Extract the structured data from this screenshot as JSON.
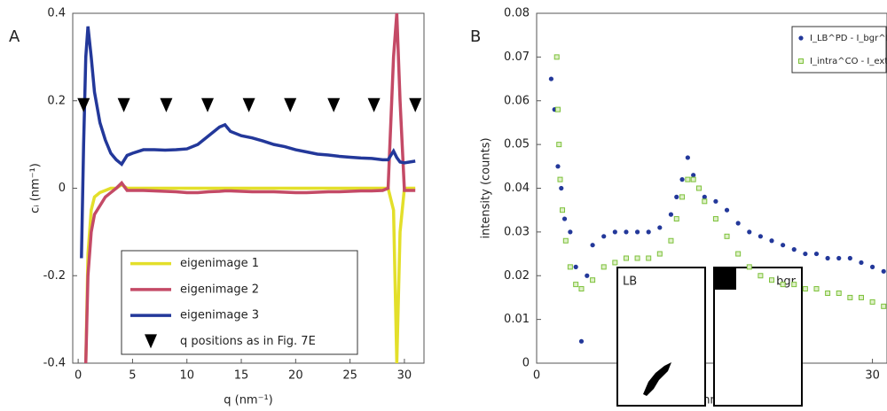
{
  "chart_data": [
    {
      "type": "line",
      "panel": "A",
      "ylabel": "cᵢ (nm⁻¹)",
      "xlabel": "q (nm⁻¹)",
      "xlim": [
        -0.5,
        31.8
      ],
      "ylim": [
        -0.4,
        0.4
      ],
      "xticks": [
        0,
        5,
        10,
        15,
        20,
        25,
        30
      ],
      "yticks": [
        -0.4,
        -0.2,
        0,
        0.2,
        0.4
      ],
      "x": [
        0.3,
        0.5,
        0.7,
        0.9,
        1.2,
        1.5,
        2,
        2.5,
        3,
        3.5,
        4,
        4.5,
        5,
        6,
        7,
        8,
        9,
        10,
        11,
        12,
        13,
        13.5,
        14,
        15,
        16,
        17,
        18,
        19,
        20,
        21,
        22,
        23,
        24,
        25,
        26,
        27,
        28,
        28.5,
        29,
        29.3,
        29.6,
        30,
        30.5,
        31
      ],
      "series": [
        {
          "name": "eigenimage 1",
          "color": "#e3df2a",
          "marker": "line",
          "values": [
            null,
            null,
            -0.4,
            -0.15,
            -0.05,
            -0.02,
            -0.01,
            -0.005,
            0,
            0,
            0.008,
            0,
            0,
            0,
            0,
            0,
            0,
            0,
            0,
            0,
            0,
            0,
            0,
            0,
            0,
            0,
            0,
            0,
            0,
            0,
            0,
            0,
            0,
            0,
            0,
            0,
            0,
            0,
            -0.05,
            -0.4,
            -0.1,
            0,
            0,
            0
          ]
        },
        {
          "name": "eigenimage 2",
          "color": "#c44a66",
          "marker": "line",
          "values": [
            null,
            null,
            -0.4,
            -0.2,
            -0.1,
            -0.06,
            -0.04,
            -0.02,
            -0.01,
            0,
            0.012,
            -0.005,
            -0.005,
            -0.005,
            -0.006,
            -0.007,
            -0.008,
            -0.01,
            -0.01,
            -0.008,
            -0.007,
            -0.006,
            -0.006,
            -0.007,
            -0.008,
            -0.008,
            -0.008,
            -0.009,
            -0.01,
            -0.01,
            -0.009,
            -0.008,
            -0.008,
            -0.007,
            -0.006,
            -0.006,
            -0.005,
            0,
            0.3,
            0.4,
            0.2,
            -0.005,
            -0.005,
            -0.005
          ]
        },
        {
          "name": "eigenimage 3",
          "color": "#23389a",
          "marker": "line",
          "values": [
            -0.16,
            0.1,
            0.3,
            0.37,
            0.3,
            0.22,
            0.15,
            0.11,
            0.08,
            0.065,
            0.055,
            0.075,
            0.08,
            0.088,
            0.088,
            0.087,
            0.088,
            0.09,
            0.1,
            0.12,
            0.14,
            0.145,
            0.13,
            0.12,
            0.115,
            0.108,
            0.1,
            0.095,
            0.088,
            0.083,
            0.078,
            0.076,
            0.073,
            0.071,
            0.069,
            0.068,
            0.065,
            0.065,
            0.085,
            0.07,
            0.06,
            0.058,
            0.06,
            0.062
          ]
        },
        {
          "name": "q positions as in Fig. 7E",
          "color": "#000000",
          "marker": "triangle",
          "x": [
            0.5,
            4.2,
            8.1,
            11.9,
            15.7,
            19.5,
            23.5,
            27.2,
            31
          ],
          "values": [
            0.19,
            0.19,
            0.19,
            0.19,
            0.19,
            0.19,
            0.19,
            0.19,
            0.19
          ]
        }
      ]
    },
    {
      "type": "scatter",
      "panel": "B",
      "ylabel": "intensity (counts)",
      "xlabel": "q (nm⁻¹)",
      "xlim": [
        0,
        31.3
      ],
      "ylim": [
        0,
        0.08
      ],
      "xticks": [
        0,
        10,
        20,
        30
      ],
      "yticks": [
        0,
        0.01,
        0.02,
        0.03,
        0.04,
        0.05,
        0.06,
        0.07,
        0.08
      ],
      "insets": [
        "LB",
        "bgr"
      ],
      "series": [
        {
          "name": "I_LB^PD - I_bgr^PD",
          "color": "#23389a",
          "marker": "circle",
          "x": [
            1.3,
            1.6,
            1.9,
            2.2,
            2.5,
            3,
            3.5,
            4,
            4.5,
            5,
            6,
            7,
            8,
            9,
            10,
            11,
            12,
            12.5,
            13,
            13.5,
            14,
            14.5,
            15,
            16,
            17,
            18,
            19,
            20,
            21,
            22,
            23,
            24,
            25,
            26,
            27,
            28,
            29,
            30,
            31
          ],
          "values": [
            0.065,
            0.058,
            0.045,
            0.04,
            0.033,
            0.03,
            0.022,
            0.005,
            0.02,
            0.027,
            0.029,
            0.03,
            0.03,
            0.03,
            0.03,
            0.031,
            0.034,
            0.038,
            0.042,
            0.047,
            0.043,
            0.04,
            0.038,
            0.037,
            0.035,
            0.032,
            0.03,
            0.029,
            0.028,
            0.027,
            0.026,
            0.025,
            0.025,
            0.024,
            0.024,
            0.024,
            0.023,
            0.022,
            0.021
          ]
        },
        {
          "name": "I_intra^CO - I_extra^CO",
          "color": "#7cc13a",
          "marker": "square",
          "x": [
            1.8,
            1.9,
            2,
            2.1,
            2.3,
            2.6,
            3,
            3.5,
            4,
            5,
            6,
            7,
            8,
            9,
            10,
            11,
            12,
            12.5,
            13,
            13.5,
            14,
            14.5,
            15,
            16,
            17,
            18,
            19,
            20,
            21,
            22,
            23,
            24,
            25,
            26,
            27,
            28,
            29,
            30,
            31
          ],
          "values": [
            0.07,
            0.058,
            0.05,
            0.042,
            0.035,
            0.028,
            0.022,
            0.018,
            0.017,
            0.019,
            0.022,
            0.023,
            0.024,
            0.024,
            0.024,
            0.025,
            0.028,
            0.033,
            0.038,
            0.042,
            0.042,
            0.04,
            0.037,
            0.033,
            0.029,
            0.025,
            0.022,
            0.02,
            0.019,
            0.018,
            0.018,
            0.017,
            0.017,
            0.016,
            0.016,
            0.015,
            0.015,
            0.014,
            0.013
          ]
        }
      ]
    }
  ]
}
